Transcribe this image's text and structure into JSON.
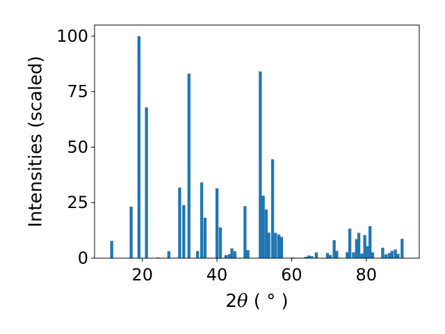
{
  "chart_data": {
    "type": "bar",
    "title": "",
    "xlabel": {
      "prefix": "2",
      "symbol": "θ",
      "unit": " ( ° )"
    },
    "ylabel": "Intensities (scaled)",
    "xlim": [
      7.2,
      94.2
    ],
    "ylim": [
      0,
      105
    ],
    "xticks": [
      20,
      40,
      60,
      80
    ],
    "yticks": [
      0,
      25,
      50,
      75,
      100
    ],
    "bar_width": 0.8,
    "bar_color": "#1f77b4",
    "grid": false,
    "legend": "none",
    "series": [
      {
        "x": [
          11.8,
          17.0,
          19.1,
          21.1,
          24.2,
          27.1,
          30.0,
          31.1,
          32.5,
          34.8,
          35.9,
          36.8,
          38.0,
          40.0,
          40.9,
          42.4,
          43.3,
          44.0,
          44.8,
          47.5,
          48.3,
          51.6,
          52.4,
          53.2,
          53.9,
          54.9,
          55.7,
          56.6,
          57.3,
          60.3,
          61.3,
          62.8,
          63.8,
          64.6,
          65.4,
          66.6,
          69.6,
          70.4,
          71.4,
          72.1,
          74.9,
          75.6,
          76.6,
          77.4,
          78.0,
          78.8,
          79.6,
          80.3,
          81.0,
          81.7,
          84.4,
          85.3,
          86.2,
          86.9,
          87.8,
          88.5,
          89.6
        ],
        "values": [
          7.8,
          23.2,
          100.0,
          67.9,
          0.3,
          3.1,
          31.8,
          23.9,
          83.1,
          3.2,
          34.1,
          18.2,
          0.2,
          31.4,
          13.8,
          1.4,
          1.8,
          4.4,
          3.1,
          23.4,
          3.6,
          84.1,
          28.1,
          21.9,
          11.5,
          44.5,
          11.4,
          10.6,
          9.6,
          0.3,
          0.2,
          0.2,
          0.6,
          1.2,
          0.9,
          2.6,
          2.3,
          1.4,
          8.1,
          3.3,
          2.7,
          13.3,
          2.6,
          8.6,
          11.4,
          2.1,
          10.4,
          5.4,
          14.4,
          2.6,
          4.7,
          1.7,
          2.3,
          3.3,
          3.9,
          1.9,
          8.7
        ]
      }
    ]
  }
}
